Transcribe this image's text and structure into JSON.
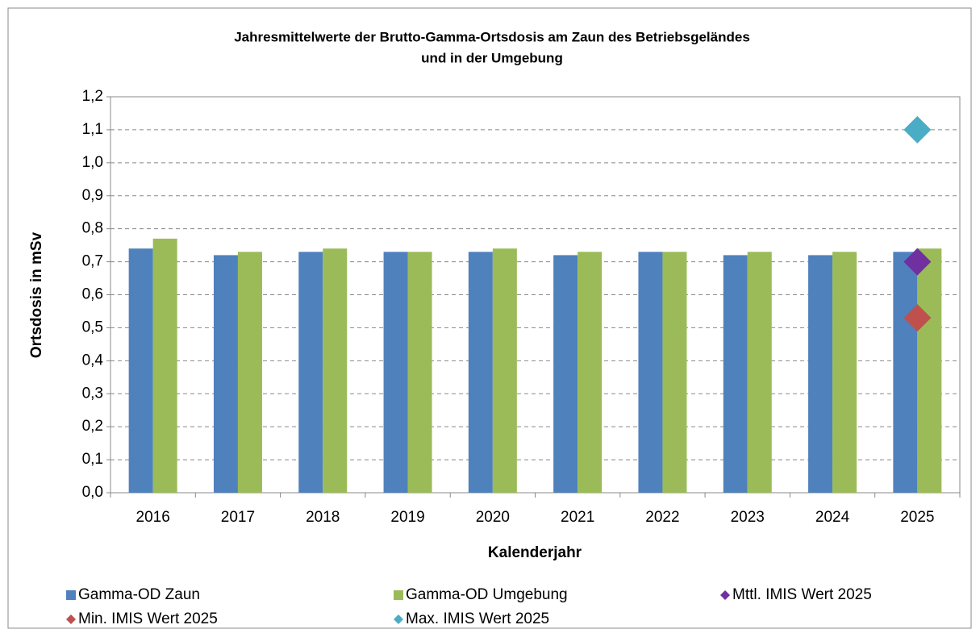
{
  "chart_data": {
    "type": "bar",
    "title": [
      "Jahresmittelwerte der Brutto-Gamma-Ortsdosis am Zaun des Betriebsgeländes",
      "und in der Umgebung"
    ],
    "xlabel": "Kalenderjahr",
    "ylabel": "Ortsdosis in mSv",
    "categories": [
      "2016",
      "2017",
      "2018",
      "2019",
      "2020",
      "2021",
      "2022",
      "2023",
      "2024",
      "2025"
    ],
    "series": [
      {
        "name": "Gamma-OD Zaun",
        "color": "#4f81bd",
        "mark": "bar",
        "values": [
          0.74,
          0.72,
          0.73,
          0.73,
          0.73,
          0.72,
          0.73,
          0.72,
          0.72,
          0.73
        ]
      },
      {
        "name": "Gamma-OD Umgebung",
        "color": "#9bbb59",
        "mark": "bar",
        "values": [
          0.77,
          0.73,
          0.74,
          0.73,
          0.74,
          0.73,
          0.73,
          0.73,
          0.73,
          0.74
        ]
      },
      {
        "name": "Mttl. IMIS Wert 2025",
        "color": "#7030a0",
        "mark": "diamond",
        "values": [
          null,
          null,
          null,
          null,
          null,
          null,
          null,
          null,
          null,
          0.7
        ]
      },
      {
        "name": "Min. IMIS Wert 2025",
        "color": "#c0504d",
        "mark": "diamond",
        "values": [
          null,
          null,
          null,
          null,
          null,
          null,
          null,
          null,
          null,
          0.53
        ]
      },
      {
        "name": "Max. IMIS Wert 2025",
        "color": "#4bacc6",
        "mark": "diamond",
        "values": [
          null,
          null,
          null,
          null,
          null,
          null,
          null,
          null,
          null,
          1.1
        ]
      }
    ],
    "ylim": [
      0,
      1.2
    ],
    "yticks": [
      {
        "value": 0,
        "label": "0,0"
      },
      {
        "value": 0.1,
        "label": "0,1"
      },
      {
        "value": 0.2,
        "label": "0,2"
      },
      {
        "value": 0.3,
        "label": "0,3"
      },
      {
        "value": 0.4,
        "label": "0,4"
      },
      {
        "value": 0.5,
        "label": "0,5"
      },
      {
        "value": 0.6,
        "label": "0,6"
      },
      {
        "value": 0.7,
        "label": "0,7"
      },
      {
        "value": 0.8,
        "label": "0,8"
      },
      {
        "value": 0.9,
        "label": "0,9"
      },
      {
        "value": 1.0,
        "label": "1,0"
      },
      {
        "value": 1.1,
        "label": "1,1"
      },
      {
        "value": 1.2,
        "label": "1,2"
      }
    ],
    "grid": true,
    "legend": "bottom"
  }
}
